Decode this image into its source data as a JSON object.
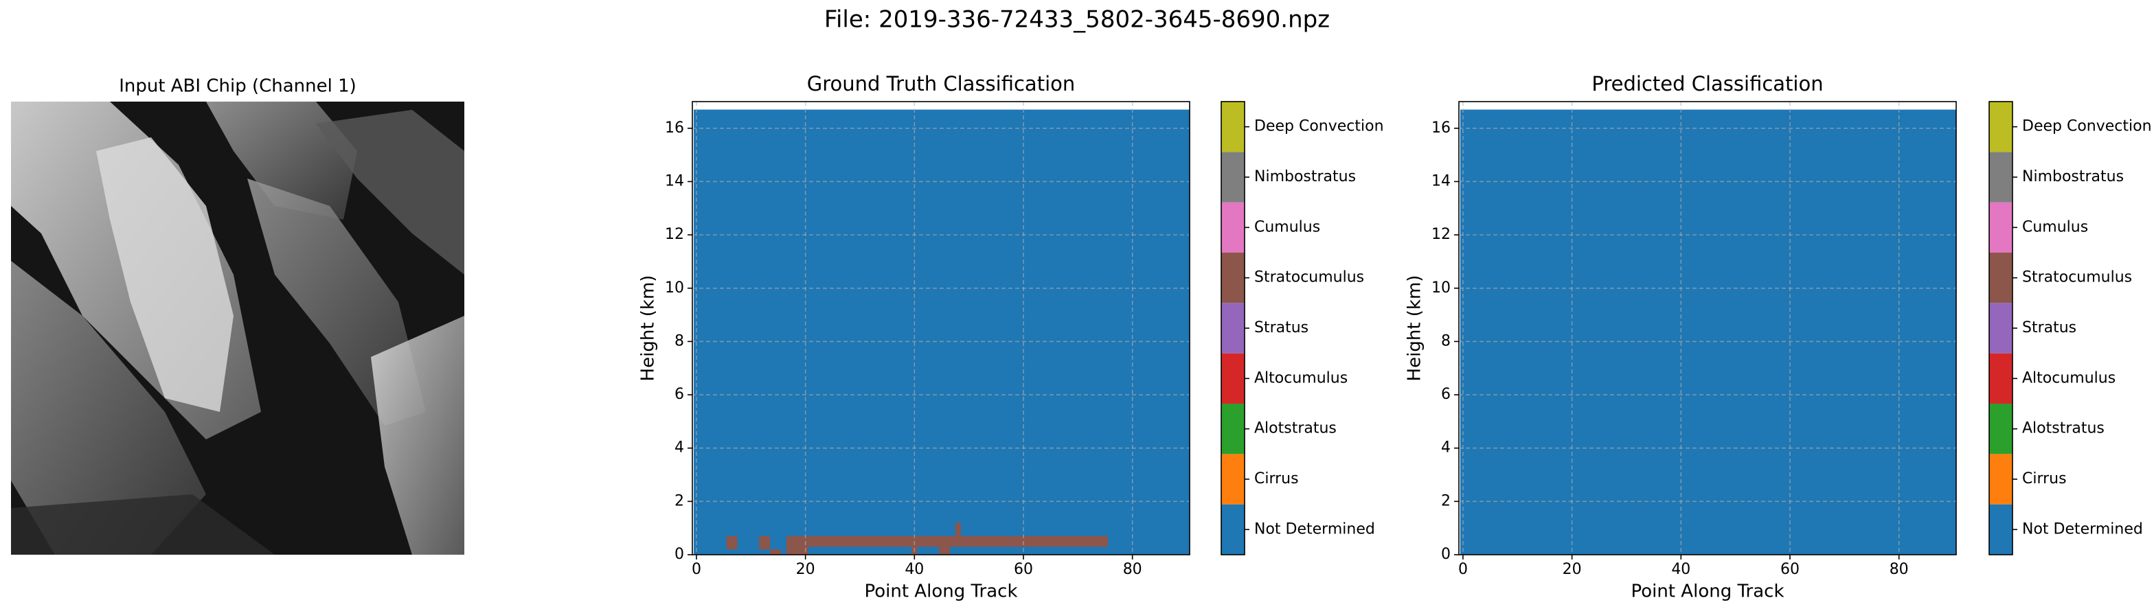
{
  "suptitle": "File: 2019-336-72433_5802-3645-8690.npz",
  "chart_data": [
    {
      "type": "image",
      "title": "Input ABI Chip (Channel 1)"
    },
    {
      "type": "heatmap",
      "title": "Ground Truth Classification",
      "xlabel": "Point Along Track",
      "ylabel": "Height (km)",
      "xlim": [
        -0.75,
        90.5
      ],
      "ylim": [
        0,
        17
      ],
      "xticks": [
        0,
        20,
        40,
        60,
        80
      ],
      "yticks": [
        0,
        2,
        4,
        6,
        8,
        10,
        12,
        14,
        16
      ],
      "grid": true,
      "regions": [
        {
          "class": 0,
          "x0": -0.5,
          "x1": 90.5,
          "y0": 0,
          "y1": 16.7
        },
        {
          "class": 5,
          "x0": 5.5,
          "x1": 7.5,
          "y0": 0.2,
          "y1": 0.7
        },
        {
          "class": 5,
          "x0": 11.5,
          "x1": 13.5,
          "y0": 0.2,
          "y1": 0.7
        },
        {
          "class": 5,
          "x0": 13.5,
          "x1": 15.5,
          "y0": 0,
          "y1": 0.2
        },
        {
          "class": 5,
          "x0": 16.5,
          "x1": 75.5,
          "y0": 0.3,
          "y1": 0.7
        },
        {
          "class": 5,
          "x0": 16.5,
          "x1": 20.5,
          "y0": 0,
          "y1": 0.3
        },
        {
          "class": 5,
          "x0": 47.5,
          "x1": 48.5,
          "y0": 0.7,
          "y1": 1.2
        },
        {
          "class": 5,
          "x0": 39.5,
          "x1": 40.5,
          "y0": 0,
          "y1": 0.3
        },
        {
          "class": 5,
          "x0": 44.5,
          "x1": 46.5,
          "y0": 0,
          "y1": 0.3
        }
      ],
      "clim": [
        -0.5,
        8.5
      ],
      "colors": [
        "#1f77b4",
        "#ff7f0e",
        "#2ca02c",
        "#d62728",
        "#9467bd",
        "#8c564b",
        "#e377c2",
        "#7f7f7f",
        "#bcbd22",
        "#17becf"
      ],
      "cticks": [
        {
          "value": 0,
          "label": "Not Determined"
        },
        {
          "value": 1,
          "label": "Cirrus"
        },
        {
          "value": 2,
          "label": "Alotstratus"
        },
        {
          "value": 3,
          "label": "Altocumulus"
        },
        {
          "value": 4,
          "label": "Stratus"
        },
        {
          "value": 5,
          "label": "Stratocumulus"
        },
        {
          "value": 6,
          "label": "Cumulus"
        },
        {
          "value": 7,
          "label": "Nimbostratus"
        },
        {
          "value": 8,
          "label": "Deep Convection"
        }
      ]
    },
    {
      "type": "heatmap",
      "title": "Predicted Classification",
      "xlabel": "Point Along Track",
      "ylabel": "Height (km)",
      "xlim": [
        -0.75,
        90.5
      ],
      "ylim": [
        0,
        17
      ],
      "xticks": [
        0,
        20,
        40,
        60,
        80
      ],
      "yticks": [
        0,
        2,
        4,
        6,
        8,
        10,
        12,
        14,
        16
      ],
      "grid": true,
      "regions": [
        {
          "class": 0,
          "x0": -0.5,
          "x1": 90.5,
          "y0": 0,
          "y1": 16.7
        }
      ],
      "clim": [
        -0.5,
        8.5
      ],
      "colors": [
        "#1f77b4",
        "#ff7f0e",
        "#2ca02c",
        "#d62728",
        "#9467bd",
        "#8c564b",
        "#e377c2",
        "#7f7f7f",
        "#bcbd22",
        "#17becf"
      ],
      "cticks": [
        {
          "value": 0,
          "label": "Not Determined"
        },
        {
          "value": 1,
          "label": "Cirrus"
        },
        {
          "value": 2,
          "label": "Alotstratus"
        },
        {
          "value": 3,
          "label": "Altocumulus"
        },
        {
          "value": 4,
          "label": "Stratus"
        },
        {
          "value": 5,
          "label": "Stratocumulus"
        },
        {
          "value": 6,
          "label": "Cumulus"
        },
        {
          "value": 7,
          "label": "Nimbostratus"
        },
        {
          "value": 8,
          "label": "Deep Convection"
        }
      ]
    }
  ]
}
